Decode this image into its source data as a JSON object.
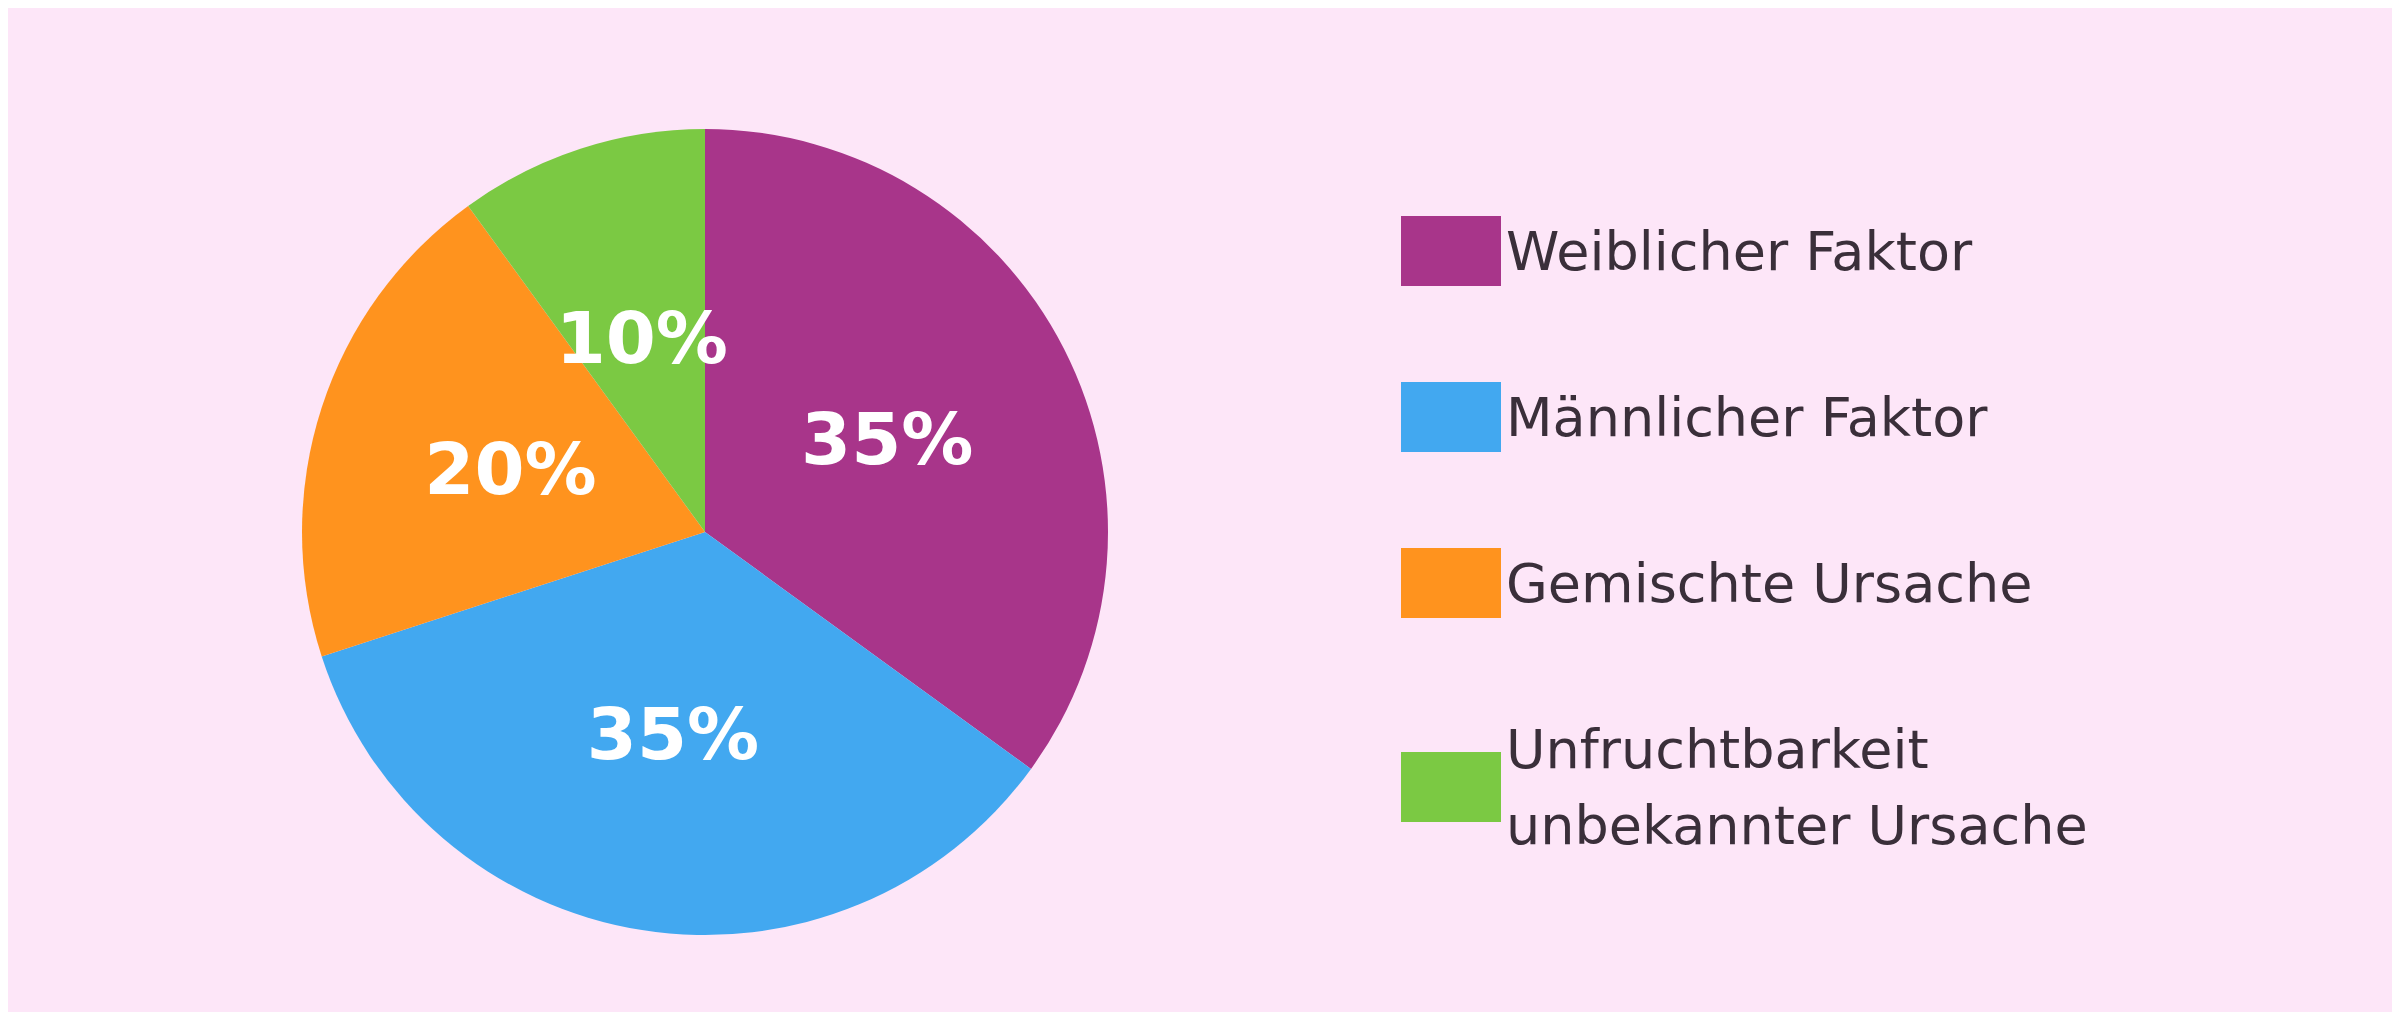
{
  "chart_data": {
    "type": "pie",
    "categories": [
      "Weiblicher Faktor",
      "Männlicher Faktor",
      "Gemischte Ursache",
      "Unfruchtbarkeit unbekannter Ursache"
    ],
    "values": [
      35,
      35,
      20,
      10
    ],
    "value_labels": [
      "35%",
      "35%",
      "20%",
      "10%"
    ],
    "colors": [
      "#a8358a",
      "#42a8f0",
      "#ff931e",
      "#7bc943"
    ],
    "legend": "right"
  }
}
